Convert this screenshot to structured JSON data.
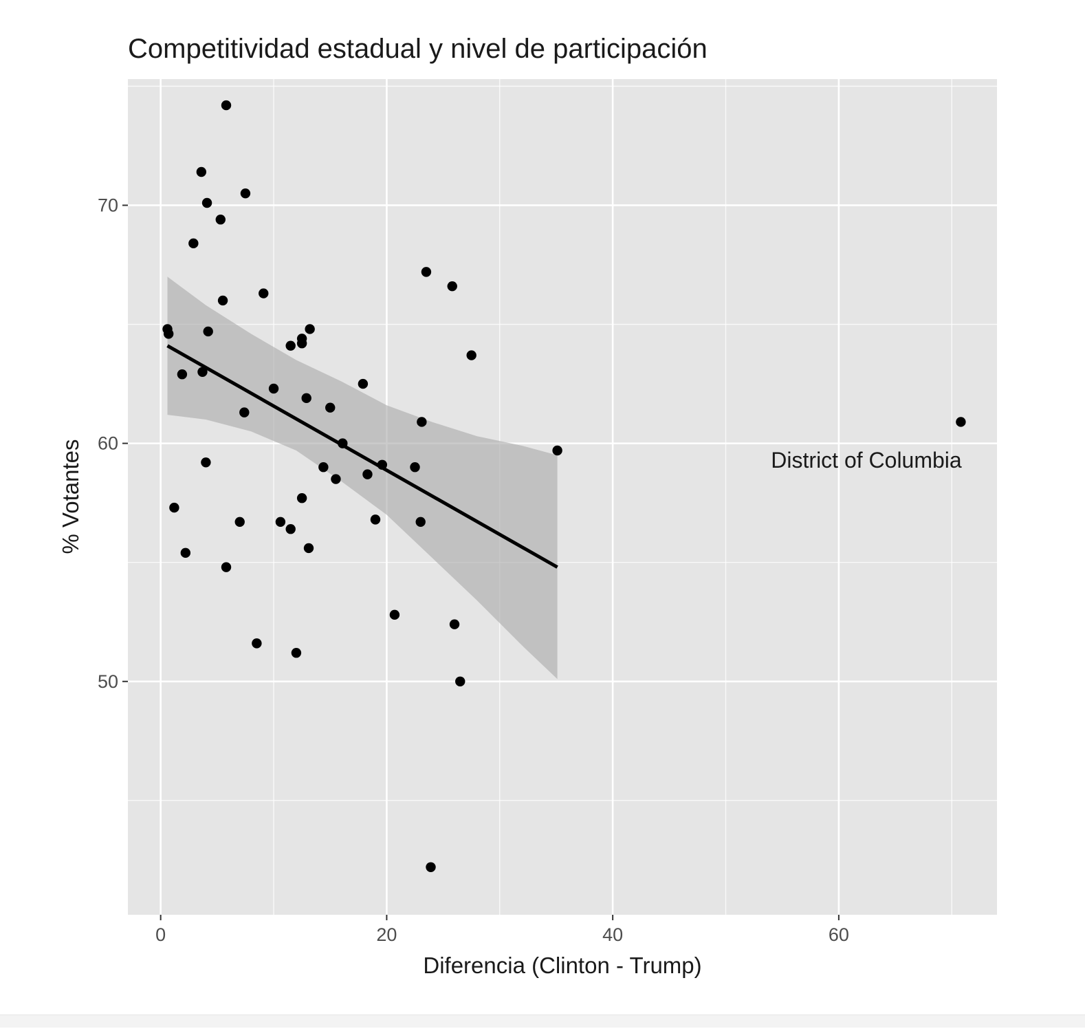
{
  "chart_data": {
    "type": "scatter",
    "title": "Competitividad estadual y nivel de participación",
    "xlabel": "Diferencia (Clinton - Trump)",
    "ylabel": "% Votantes",
    "xlim": [
      -2.9,
      74.0
    ],
    "ylim": [
      40.2,
      75.3
    ],
    "x_ticks": [
      0,
      20,
      40,
      60
    ],
    "x_tick_labels": [
      "0",
      "20",
      "40",
      "60"
    ],
    "y_ticks": [
      50,
      60,
      70
    ],
    "y_tick_labels": [
      "50",
      "60",
      "70"
    ],
    "grid": true,
    "points": [
      {
        "x": 5.8,
        "y": 74.2
      },
      {
        "x": 3.6,
        "y": 71.4
      },
      {
        "x": 7.5,
        "y": 70.5
      },
      {
        "x": 4.1,
        "y": 70.1
      },
      {
        "x": 5.3,
        "y": 69.4
      },
      {
        "x": 2.9,
        "y": 68.4
      },
      {
        "x": 23.5,
        "y": 67.2
      },
      {
        "x": 25.8,
        "y": 66.6
      },
      {
        "x": 9.1,
        "y": 66.3
      },
      {
        "x": 5.5,
        "y": 66.0
      },
      {
        "x": 0.6,
        "y": 64.8
      },
      {
        "x": 0.7,
        "y": 64.6
      },
      {
        "x": 4.2,
        "y": 64.7
      },
      {
        "x": 13.2,
        "y": 64.8
      },
      {
        "x": 12.5,
        "y": 64.4
      },
      {
        "x": 12.5,
        "y": 64.2
      },
      {
        "x": 11.5,
        "y": 64.1
      },
      {
        "x": 27.5,
        "y": 63.7
      },
      {
        "x": 1.9,
        "y": 62.9
      },
      {
        "x": 3.7,
        "y": 63.0
      },
      {
        "x": 17.9,
        "y": 62.5
      },
      {
        "x": 10.0,
        "y": 62.3
      },
      {
        "x": 12.9,
        "y": 61.9
      },
      {
        "x": 15.0,
        "y": 61.5
      },
      {
        "x": 7.4,
        "y": 61.3
      },
      {
        "x": 23.1,
        "y": 60.9
      },
      {
        "x": 70.8,
        "y": 60.9
      },
      {
        "x": 16.1,
        "y": 60.0
      },
      {
        "x": 35.1,
        "y": 59.7
      },
      {
        "x": 4.0,
        "y": 59.2
      },
      {
        "x": 14.4,
        "y": 59.0
      },
      {
        "x": 19.6,
        "y": 59.1
      },
      {
        "x": 22.5,
        "y": 59.0
      },
      {
        "x": 18.3,
        "y": 58.7
      },
      {
        "x": 15.5,
        "y": 58.5
      },
      {
        "x": 12.5,
        "y": 57.7
      },
      {
        "x": 1.2,
        "y": 57.3
      },
      {
        "x": 7.0,
        "y": 56.7
      },
      {
        "x": 10.6,
        "y": 56.7
      },
      {
        "x": 23.0,
        "y": 56.7
      },
      {
        "x": 19.0,
        "y": 56.8
      },
      {
        "x": 11.5,
        "y": 56.4
      },
      {
        "x": 13.1,
        "y": 55.6
      },
      {
        "x": 2.2,
        "y": 55.4
      },
      {
        "x": 5.8,
        "y": 54.8
      },
      {
        "x": 20.7,
        "y": 52.8
      },
      {
        "x": 26.0,
        "y": 52.4
      },
      {
        "x": 8.5,
        "y": 51.6
      },
      {
        "x": 12.0,
        "y": 51.2
      },
      {
        "x": 26.5,
        "y": 50.0
      },
      {
        "x": 23.9,
        "y": 42.2
      }
    ],
    "annotation": {
      "text": "District of Columbia",
      "x": 70.8,
      "y": 60.9
    },
    "fit": {
      "method": "linear",
      "x_range": [
        0.6,
        35.1
      ],
      "y_start": 64.1,
      "y_end": 54.8,
      "ci_band": [
        {
          "x": 0.6,
          "lo": 61.2,
          "hi": 67.0
        },
        {
          "x": 4.0,
          "lo": 61.0,
          "hi": 65.8
        },
        {
          "x": 8.0,
          "lo": 60.5,
          "hi": 64.6
        },
        {
          "x": 12.0,
          "lo": 59.7,
          "hi": 63.5
        },
        {
          "x": 16.0,
          "lo": 58.4,
          "hi": 62.6
        },
        {
          "x": 20.0,
          "lo": 57.0,
          "hi": 61.6
        },
        {
          "x": 24.0,
          "lo": 55.2,
          "hi": 60.9
        },
        {
          "x": 28.0,
          "lo": 53.4,
          "hi": 60.3
        },
        {
          "x": 32.0,
          "lo": 51.5,
          "hi": 59.9
        },
        {
          "x": 35.1,
          "lo": 50.1,
          "hi": 59.5
        }
      ]
    },
    "colors": {
      "panel": "#e5e5e5",
      "grid_major": "#ffffff",
      "point": "#000000",
      "fit_line": "#000000",
      "ci_band": "#a9a9a9",
      "text": "#1a1a1a",
      "tick_text": "#4d4d4d"
    }
  }
}
